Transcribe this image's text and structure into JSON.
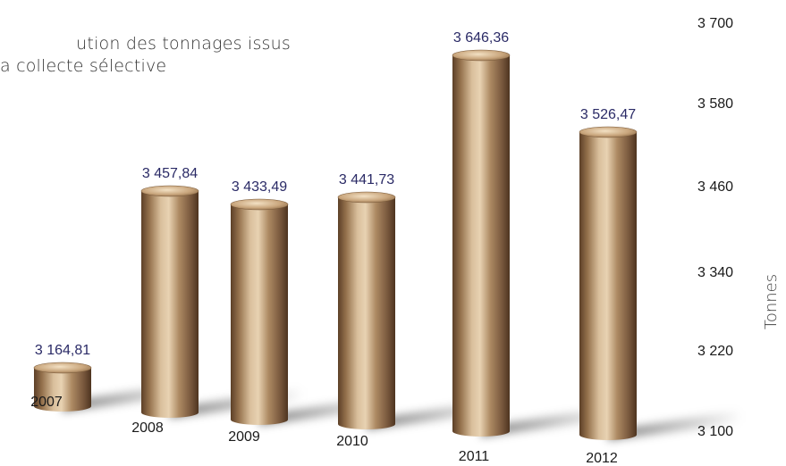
{
  "chart_data": {
    "type": "bar",
    "title_lines": [
      "ution des tonnages issus",
      "a collecte sélective"
    ],
    "ylabel": "Tonnes",
    "xlabel": "",
    "categories": [
      "2007",
      "2008",
      "2009",
      "2010",
      "2011",
      "2012"
    ],
    "values": [
      3164.81,
      3457.84,
      3433.49,
      3441.73,
      3646.36,
      3526.47
    ],
    "value_labels": [
      "3 164,81",
      "3 457,84",
      "3 433,49",
      "3 441,73",
      "3 646,36",
      "3 526,47"
    ],
    "yticks": [
      3100,
      3220,
      3340,
      3460,
      3580,
      3700
    ],
    "ytick_labels": [
      "3 100",
      "3 220",
      "3 340",
      "3 460",
      "3 580",
      "3 700"
    ],
    "ylim": [
      3100,
      3700
    ],
    "grid": false,
    "axis_side": "right",
    "colors": {
      "bar": "#a07a52",
      "bar_light": "#e6cdaa",
      "bar_dark": "#5a3e26",
      "value_text": "#2a2a66"
    }
  }
}
